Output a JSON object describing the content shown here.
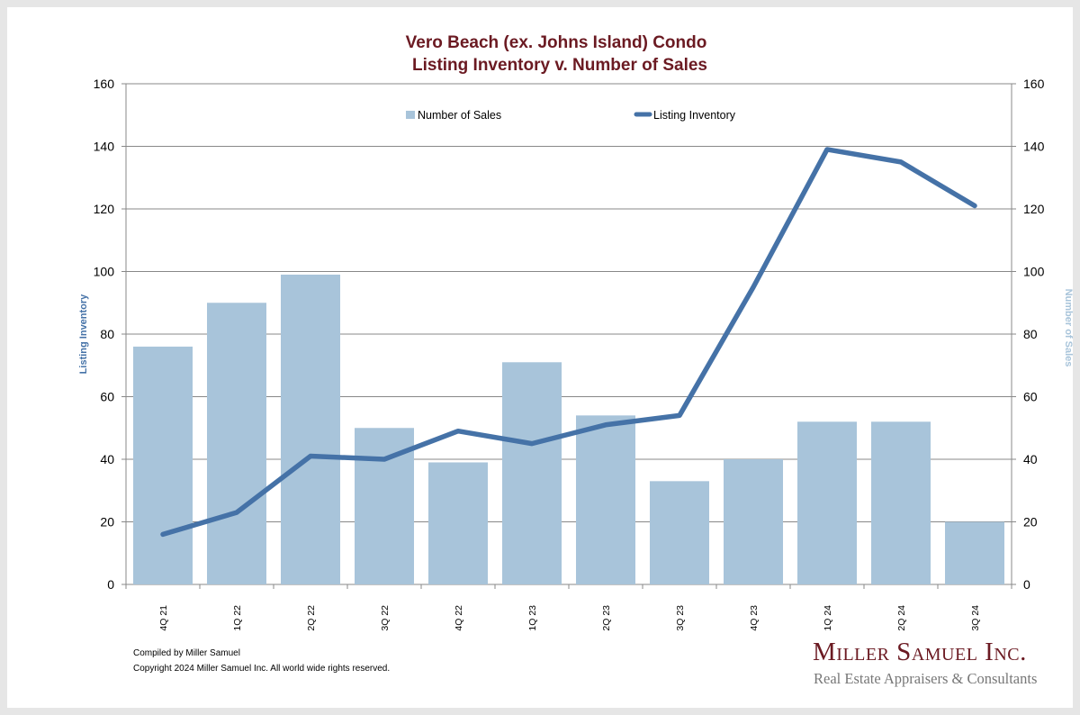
{
  "chart_data": {
    "type": "bar",
    "title_line1": "Vero Beach (ex. Johns Island) Condo",
    "title_line2": "Listing Inventory v. Number of Sales",
    "categories": [
      "4Q 21",
      "1Q 22",
      "2Q 22",
      "3Q 22",
      "4Q 22",
      "1Q 23",
      "2Q 23",
      "3Q 23",
      "4Q 23",
      "1Q 24",
      "2Q 24",
      "3Q 24"
    ],
    "series": [
      {
        "name": "Number of Sales",
        "kind": "bar",
        "axis": "right",
        "color": "#a8c4da",
        "values": [
          76,
          90,
          99,
          50,
          39,
          71,
          54,
          33,
          40,
          52,
          52,
          20
        ]
      },
      {
        "name": "Listing Inventory",
        "kind": "line",
        "axis": "left",
        "color": "#4572a7",
        "values": [
          16,
          23,
          41,
          40,
          49,
          45,
          51,
          54,
          95,
          139,
          135,
          121
        ]
      }
    ],
    "ylabel_left": "Listing Inventory",
    "ylabel_right": "Number of Sales",
    "ylim": [
      0,
      160
    ],
    "yticks": [
      0,
      20,
      40,
      60,
      80,
      100,
      120,
      140,
      160
    ],
    "grid": true,
    "legend": "top-center",
    "title_color": "#6b1a22"
  },
  "footer": {
    "compiled": "Compiled by Miller Samuel",
    "copyright": "Copyright 2024 Miller Samuel Inc.  All world wide rights reserved."
  },
  "logo": {
    "name": "Miller Samuel Inc.",
    "tagline": "Real Estate Appraisers & Consultants"
  }
}
